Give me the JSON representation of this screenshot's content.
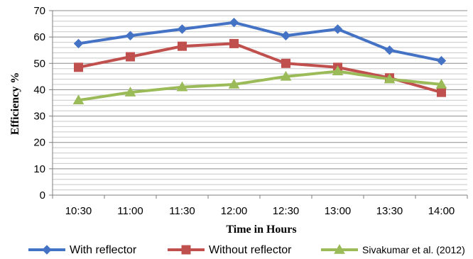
{
  "chart_data": {
    "type": "line",
    "xlabel": "Time in Hours",
    "ylabel": "Efficiency %",
    "categories": [
      "10:30",
      "11:00",
      "11:30",
      "12:00",
      "12:30",
      "13:00",
      "13:30",
      "14:00"
    ],
    "ylim": [
      0,
      70
    ],
    "yticks": [
      0,
      10,
      20,
      30,
      40,
      50,
      60,
      70
    ],
    "grid": true,
    "legend_position": "bottom",
    "series": [
      {
        "name": "With reflector",
        "color": "#4472C4",
        "marker": "diamond",
        "values": [
          57.5,
          60.5,
          63,
          65.5,
          60.5,
          63,
          55,
          51
        ]
      },
      {
        "name": "Without reflector",
        "color": "#C0504D",
        "marker": "square",
        "values": [
          48.5,
          52.5,
          56.5,
          57.5,
          50,
          48.5,
          44.5,
          39
        ]
      },
      {
        "name": "Sivakumar et al. (2012)",
        "color": "#9BBB59",
        "marker": "triangle",
        "values": [
          36,
          39,
          41,
          42,
          45,
          47,
          44,
          42
        ]
      }
    ]
  }
}
